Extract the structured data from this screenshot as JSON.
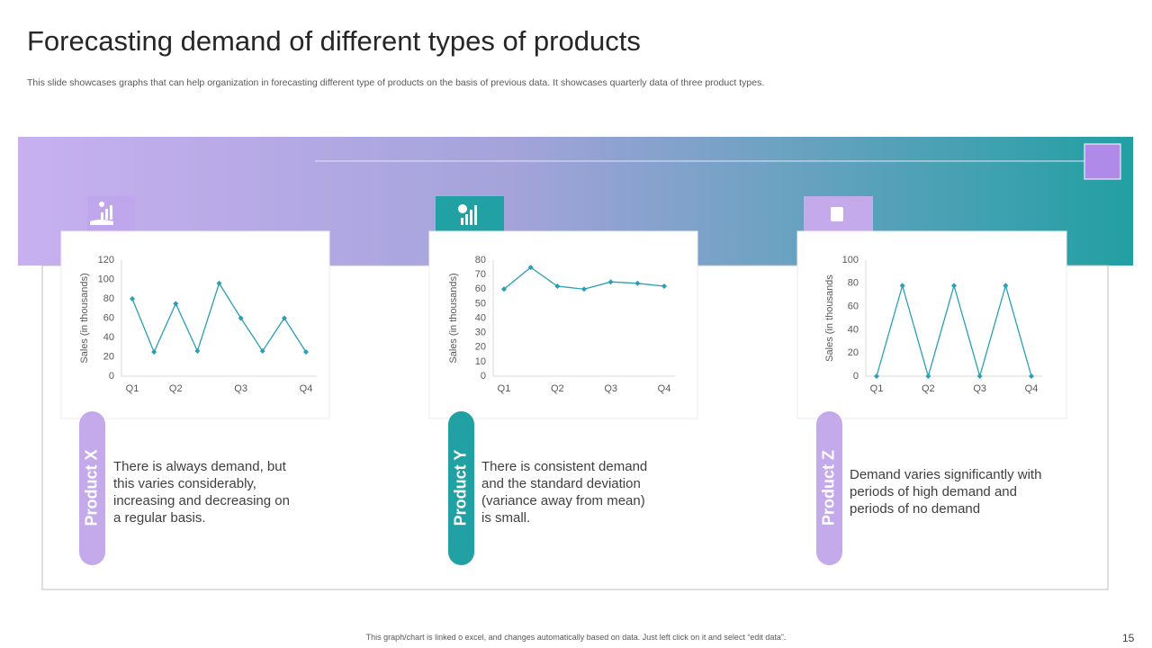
{
  "title": "Forecasting demand of different types of products",
  "subtitle": "This slide showcases graphs that can help organization in forecasting different type  of products on the basis of previous data. It showcases quarterly data of three product types.",
  "chart_data": [
    {
      "type": "line",
      "y_label": "Sales (in thousands)",
      "color": "#2a9fb3",
      "grid": false,
      "categories": [
        "Q1",
        null,
        "Q2",
        null,
        null,
        "Q3",
        null,
        null,
        "Q4"
      ],
      "values": [
        80,
        25,
        75,
        26,
        96,
        60,
        26,
        60,
        25
      ],
      "ylim": [
        0,
        120
      ],
      "yticks": [
        0,
        20,
        40,
        60,
        80,
        100,
        120
      ]
    },
    {
      "type": "line",
      "y_label": "Sales (in thousands)",
      "color": "#2a9fb3",
      "grid": false,
      "categories": [
        "Q1",
        null,
        "Q2",
        null,
        "Q3",
        null,
        "Q4"
      ],
      "values": [
        60,
        75,
        62,
        60,
        65,
        64,
        62
      ],
      "ylim": [
        0,
        80
      ],
      "yticks": [
        0,
        10,
        20,
        30,
        40,
        50,
        60,
        70,
        80
      ]
    },
    {
      "type": "line",
      "y_label": "Sales (in thousands",
      "color": "#2a9fb3",
      "grid": false,
      "categories": [
        "Q1",
        null,
        "Q2",
        null,
        "Q3",
        null,
        "Q4"
      ],
      "values": [
        0,
        78,
        0,
        78,
        0,
        78,
        0
      ],
      "ylim": [
        0,
        100
      ],
      "yticks": [
        0,
        20,
        40,
        60,
        80,
        100
      ]
    }
  ],
  "products": [
    {
      "name": "Product X",
      "description": "There is always demand, but this varies considerably, increasing and decreasing on a regular basis.",
      "color": "#c5aaeb"
    },
    {
      "name": "Product Y",
      "description": "There is consistent demand and the standard deviation (variance away from mean) is small.",
      "color": "#22a1a4"
    },
    {
      "name": "Product Z",
      "description": "Demand varies significantly with periods of high demand and periods of no demand",
      "color": "#c5aaeb"
    }
  ],
  "footer": "This graph/chart is linked o excel, and changes automatically based on data. Just left click on it and select “edit data”.",
  "page_number": "15"
}
